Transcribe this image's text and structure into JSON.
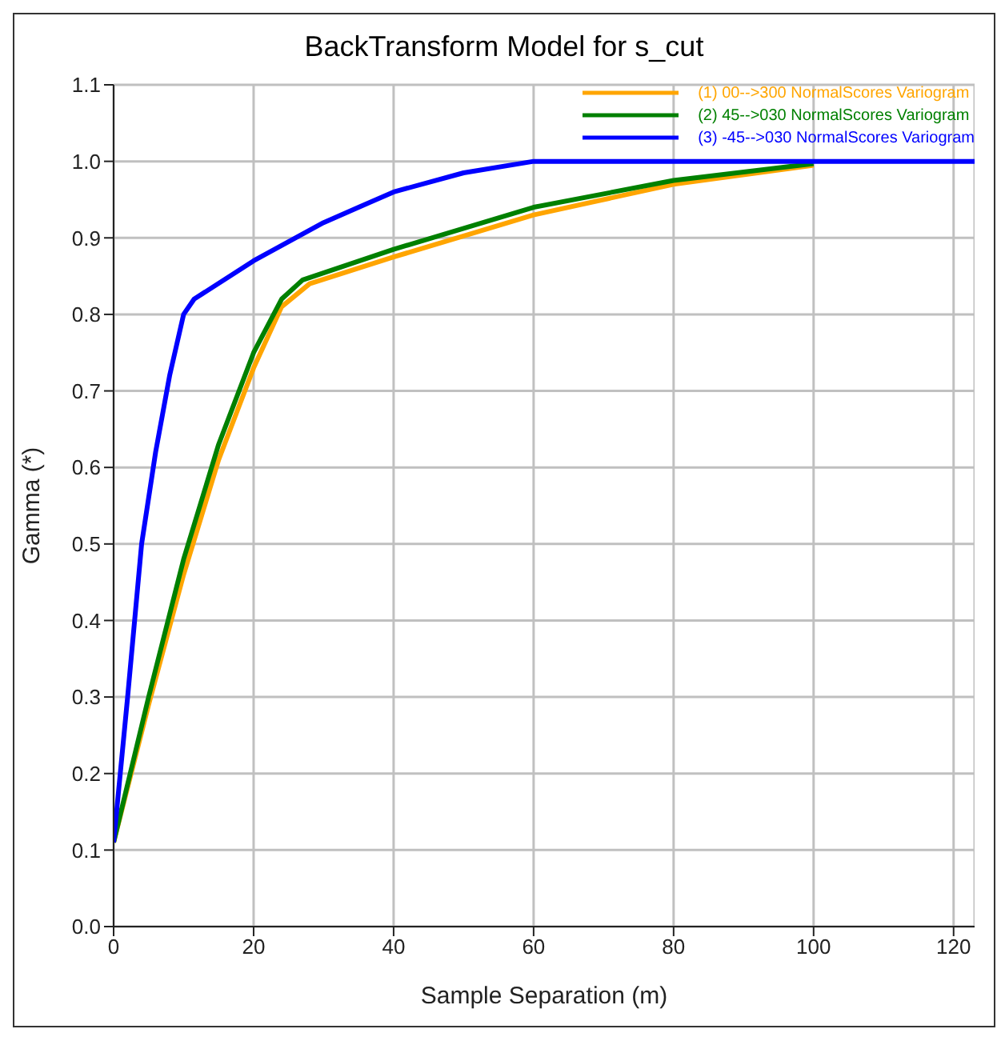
{
  "chart_data": {
    "type": "line",
    "title": "BackTransform Model for s_cut",
    "xlabel": "Sample Separation (m)",
    "ylabel": "Gamma (*)",
    "xlim": [
      0,
      123
    ],
    "xticks": [
      0,
      20,
      40,
      60,
      80,
      100,
      120
    ],
    "ylim": [
      0,
      1.1
    ],
    "yticks": [
      {
        "value": 0,
        "label": "0.0"
      },
      0.1,
      0.2,
      0.3,
      0.4,
      0.5,
      0.6,
      0.7,
      0.8,
      0.9,
      {
        "value": 1,
        "label": "1.0"
      },
      1.1
    ],
    "grid": true,
    "legend": "top right",
    "marker": "none",
    "line_style": "solid",
    "series": [
      {
        "name": "(1) 00-->300 NormalScores Variogram",
        "color": "#ffa500",
        "x": [
          0,
          5,
          10,
          15,
          20,
          24,
          28,
          40,
          60,
          80,
          100
        ],
        "values": [
          0.11,
          0.29,
          0.46,
          0.61,
          0.73,
          0.81,
          0.84,
          0.875,
          0.93,
          0.97,
          0.995
        ]
      },
      {
        "name": "(2) 45-->030 NormalScores Variogram",
        "color": "#008000",
        "x": [
          0,
          5,
          10,
          15,
          20,
          24,
          27,
          40,
          60,
          80,
          100
        ],
        "values": [
          0.11,
          0.3,
          0.48,
          0.63,
          0.75,
          0.82,
          0.845,
          0.885,
          0.94,
          0.975,
          0.997
        ]
      },
      {
        "name": "(3) -45-->030 NormalScores Variogram",
        "color": "#0000ff",
        "x": [
          0,
          2,
          4,
          6,
          8,
          10,
          11.5,
          20,
          30,
          40,
          50,
          60,
          123
        ],
        "values": [
          0.11,
          0.3,
          0.5,
          0.62,
          0.72,
          0.8,
          0.82,
          0.87,
          0.92,
          0.96,
          0.985,
          1.0,
          1.0
        ]
      }
    ]
  }
}
